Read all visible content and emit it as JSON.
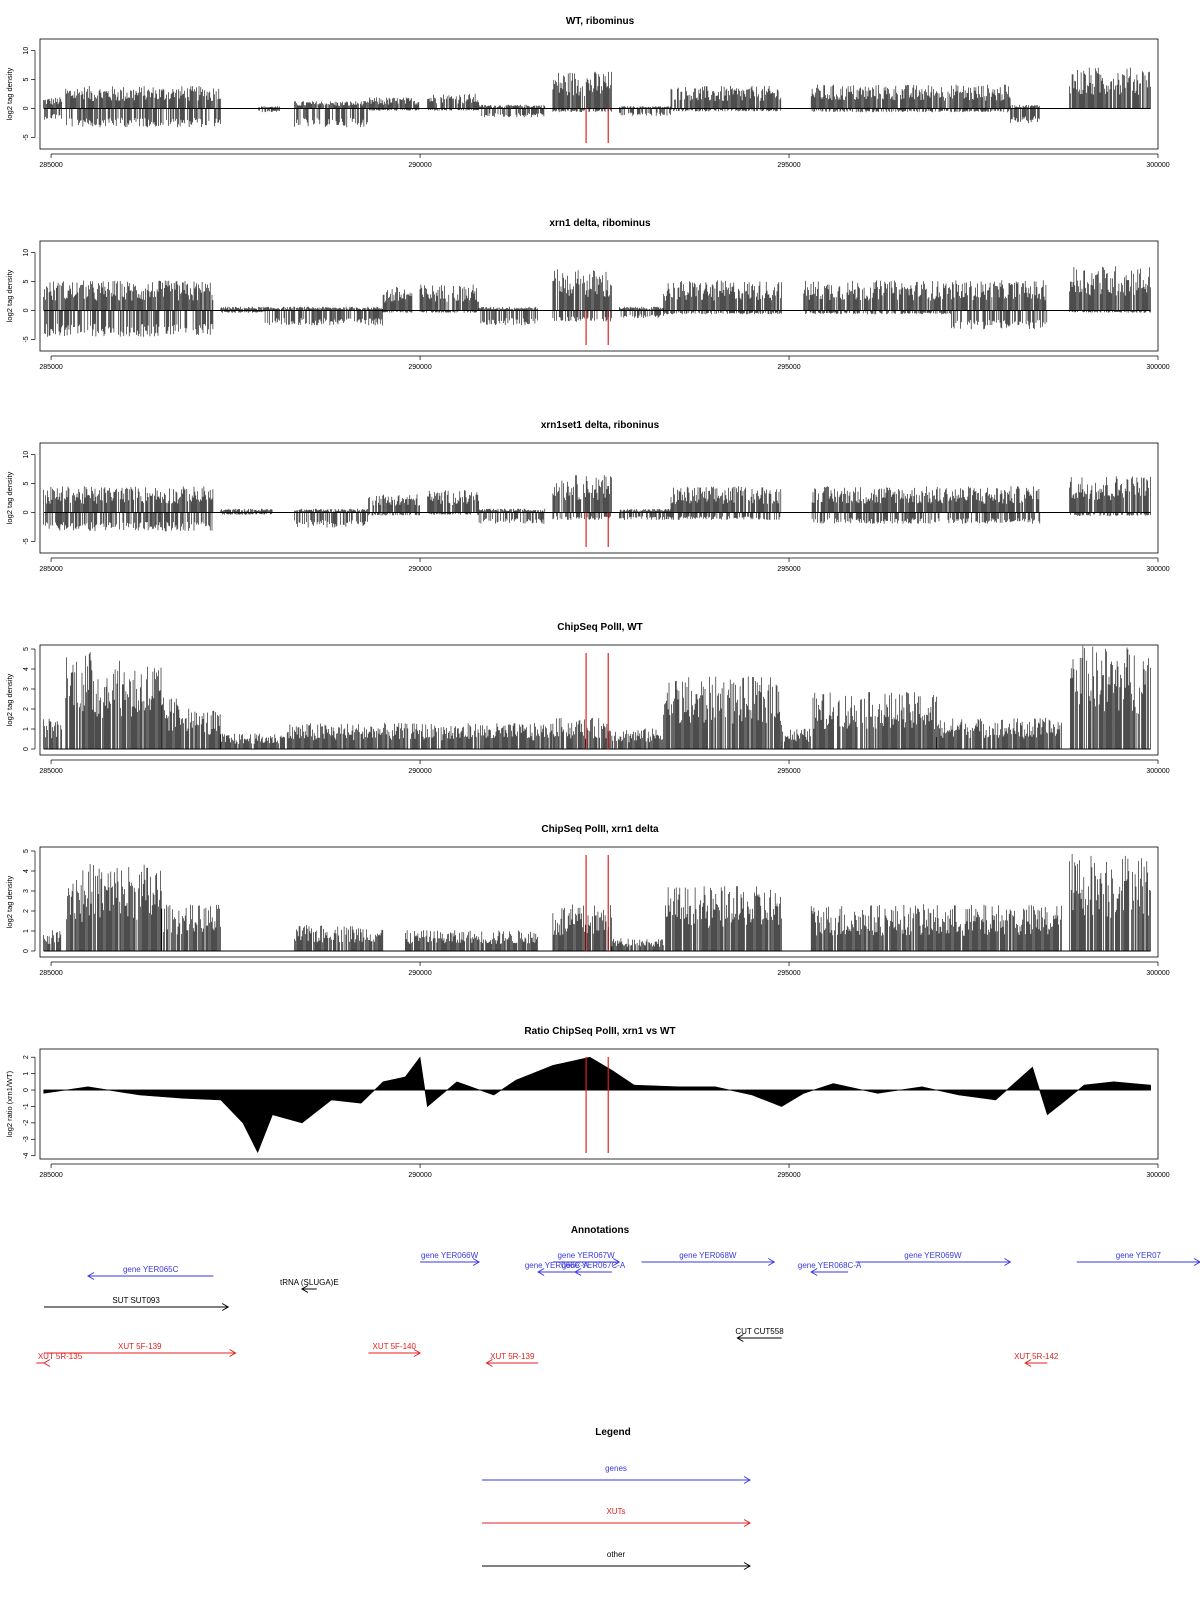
{
  "chart_data": [
    {
      "type": "bar",
      "title": "WT, ribominus",
      "ylabel": "log2 tag density",
      "xlabel": "",
      "ylim": [
        -7,
        12
      ],
      "yticks": [
        -5,
        0,
        5,
        10
      ],
      "xlim": [
        284850,
        300000
      ],
      "xticks": [
        285000,
        290000,
        295000,
        300000
      ],
      "red_lines_x": [
        292250,
        292550
      ],
      "segments": [
        {
          "x0": 284900,
          "x1": 285150,
          "pos": 1.5,
          "neg": 1.5
        },
        {
          "x0": 285200,
          "x1": 287300,
          "pos": 3.0,
          "neg": 2.5
        },
        {
          "x0": 287800,
          "x1": 288100,
          "pos": 0.3,
          "neg": 0.5
        },
        {
          "x0": 288300,
          "x1": 289300,
          "pos": 1.0,
          "neg": 2.5
        },
        {
          "x0": 289300,
          "x1": 290000,
          "pos": 1.5,
          "neg": 0.3
        },
        {
          "x0": 290100,
          "x1": 290800,
          "pos": 2.0,
          "neg": 0.3
        },
        {
          "x0": 290800,
          "x1": 291700,
          "pos": 0.5,
          "neg": 1.2
        },
        {
          "x0": 291800,
          "x1": 292600,
          "pos": 5.0,
          "neg": 0.5
        },
        {
          "x0": 292700,
          "x1": 293400,
          "pos": 0.3,
          "neg": 1.0
        },
        {
          "x0": 293400,
          "x1": 294900,
          "pos": 3.0,
          "neg": 0.4
        },
        {
          "x0": 295300,
          "x1": 298000,
          "pos": 3.2,
          "neg": 0.5
        },
        {
          "x0": 298000,
          "x1": 298400,
          "pos": 0.5,
          "neg": 2.0
        },
        {
          "x0": 298800,
          "x1": 299900,
          "pos": 5.5,
          "neg": 0.0
        }
      ]
    },
    {
      "type": "bar",
      "title": "xrn1 delta, ribominus",
      "ylabel": "log2 tag density",
      "xlabel": "",
      "ylim": [
        -7,
        12
      ],
      "yticks": [
        -5,
        0,
        5,
        10
      ],
      "xlim": [
        284850,
        300000
      ],
      "xticks": [
        285000,
        290000,
        295000,
        300000
      ],
      "red_lines_x": [
        292250,
        292550
      ],
      "segments": [
        {
          "x0": 284900,
          "x1": 287200,
          "pos": 4.0,
          "neg": 3.5
        },
        {
          "x0": 287300,
          "x1": 287900,
          "pos": 0.5,
          "neg": 0.3
        },
        {
          "x0": 287900,
          "x1": 289000,
          "pos": 0.5,
          "neg": 2.0
        },
        {
          "x0": 289000,
          "x1": 289500,
          "pos": 0.5,
          "neg": 2.0
        },
        {
          "x0": 289500,
          "x1": 289900,
          "pos": 3.2,
          "neg": 0.3
        },
        {
          "x0": 290000,
          "x1": 290800,
          "pos": 3.5,
          "neg": 0.3
        },
        {
          "x0": 290800,
          "x1": 291600,
          "pos": 0.5,
          "neg": 2.0
        },
        {
          "x0": 291800,
          "x1": 292600,
          "pos": 5.5,
          "neg": 1.5
        },
        {
          "x0": 292700,
          "x1": 293300,
          "pos": 0.5,
          "neg": 1.0
        },
        {
          "x0": 293300,
          "x1": 294900,
          "pos": 4.0,
          "neg": 0.5
        },
        {
          "x0": 295200,
          "x1": 297200,
          "pos": 4.0,
          "neg": 0.5
        },
        {
          "x0": 297200,
          "x1": 298500,
          "pos": 4.0,
          "neg": 2.5
        },
        {
          "x0": 298800,
          "x1": 299900,
          "pos": 6.0,
          "neg": 0.3
        }
      ]
    },
    {
      "type": "bar",
      "title": "xrn1set1 delta, riboninus",
      "ylabel": "log2 tag density",
      "xlabel": "",
      "ylim": [
        -7,
        12
      ],
      "yticks": [
        -5,
        0,
        5,
        10
      ],
      "xlim": [
        284850,
        300000
      ],
      "xticks": [
        285000,
        290000,
        295000,
        300000
      ],
      "red_lines_x": [
        292250,
        292550
      ],
      "segments": [
        {
          "x0": 284900,
          "x1": 287200,
          "pos": 3.5,
          "neg": 2.5
        },
        {
          "x0": 287300,
          "x1": 288000,
          "pos": 0.5,
          "neg": 0.3
        },
        {
          "x0": 288300,
          "x1": 289300,
          "pos": 0.5,
          "neg": 2.0
        },
        {
          "x0": 289300,
          "x1": 290000,
          "pos": 2.5,
          "neg": 0.4
        },
        {
          "x0": 290100,
          "x1": 290800,
          "pos": 3.0,
          "neg": 0.3
        },
        {
          "x0": 290800,
          "x1": 291700,
          "pos": 0.5,
          "neg": 1.5
        },
        {
          "x0": 291800,
          "x1": 292600,
          "pos": 5.0,
          "neg": 1.0
        },
        {
          "x0": 292700,
          "x1": 293400,
          "pos": 0.5,
          "neg": 1.0
        },
        {
          "x0": 293400,
          "x1": 294900,
          "pos": 3.5,
          "neg": 1.0
        },
        {
          "x0": 295300,
          "x1": 298400,
          "pos": 3.5,
          "neg": 1.5
        },
        {
          "x0": 298800,
          "x1": 299900,
          "pos": 5.0,
          "neg": 0.5
        }
      ]
    },
    {
      "type": "bar",
      "title": "ChipSeq PolII, WT",
      "ylabel": "log2 tag density",
      "xlabel": "",
      "ylim": [
        -0.3,
        5.2
      ],
      "yticks": [
        0,
        1,
        2,
        3,
        4,
        5
      ],
      "xlim": [
        284850,
        300000
      ],
      "xticks": [
        285000,
        290000,
        295000,
        300000
      ],
      "red_lines_x": [
        292250,
        292550
      ],
      "segments": [
        {
          "x0": 284900,
          "x1": 285150,
          "pos": 1.2,
          "neg": 0
        },
        {
          "x0": 285200,
          "x1": 285600,
          "pos": 3.8,
          "neg": 0
        },
        {
          "x0": 285600,
          "x1": 286500,
          "pos": 3.4,
          "neg": 0
        },
        {
          "x0": 286500,
          "x1": 286900,
          "pos": 2.0,
          "neg": 0
        },
        {
          "x0": 286900,
          "x1": 287300,
          "pos": 1.5,
          "neg": 0
        },
        {
          "x0": 287300,
          "x1": 288200,
          "pos": 0.6,
          "neg": 0
        },
        {
          "x0": 288200,
          "x1": 291800,
          "pos": 1.0,
          "neg": 0
        },
        {
          "x0": 291800,
          "x1": 292600,
          "pos": 1.2,
          "neg": 0
        },
        {
          "x0": 292600,
          "x1": 293300,
          "pos": 0.8,
          "neg": 0
        },
        {
          "x0": 293300,
          "x1": 294900,
          "pos": 2.8,
          "neg": 0
        },
        {
          "x0": 294900,
          "x1": 295300,
          "pos": 0.8,
          "neg": 0
        },
        {
          "x0": 295300,
          "x1": 297000,
          "pos": 2.2,
          "neg": 0
        },
        {
          "x0": 297000,
          "x1": 298700,
          "pos": 1.2,
          "neg": 0
        },
        {
          "x0": 298800,
          "x1": 299900,
          "pos": 4.0,
          "neg": 0
        }
      ]
    },
    {
      "type": "bar",
      "title": "ChipSeq PolII, xrn1 delta",
      "ylabel": "log2 tag density",
      "xlabel": "",
      "ylim": [
        -0.3,
        5.2
      ],
      "yticks": [
        0,
        1,
        2,
        3,
        4,
        5
      ],
      "xlim": [
        284850,
        300000
      ],
      "xticks": [
        285000,
        290000,
        295000,
        300000
      ],
      "red_lines_x": [
        292250,
        292550
      ],
      "segments": [
        {
          "x0": 284900,
          "x1": 285150,
          "pos": 0.8,
          "neg": 0
        },
        {
          "x0": 285200,
          "x1": 286500,
          "pos": 3.4,
          "neg": 0
        },
        {
          "x0": 286500,
          "x1": 287300,
          "pos": 1.8,
          "neg": 0
        },
        {
          "x0": 288300,
          "x1": 289500,
          "pos": 1.0,
          "neg": 0
        },
        {
          "x0": 289800,
          "x1": 291600,
          "pos": 0.8,
          "neg": 0
        },
        {
          "x0": 291800,
          "x1": 292600,
          "pos": 1.8,
          "neg": 0
        },
        {
          "x0": 292600,
          "x1": 293300,
          "pos": 0.5,
          "neg": 0
        },
        {
          "x0": 293300,
          "x1": 294900,
          "pos": 2.5,
          "neg": 0
        },
        {
          "x0": 295300,
          "x1": 298700,
          "pos": 1.8,
          "neg": 0
        },
        {
          "x0": 298800,
          "x1": 299900,
          "pos": 3.8,
          "neg": 0
        }
      ]
    },
    {
      "type": "area",
      "title": "Ratio ChipSeq PolII, xrn1 vs WT",
      "ylabel": "log2 ratio (xrn1/WT)",
      "xlabel": "",
      "ylim": [
        -4.2,
        2.5
      ],
      "yticks": [
        -4,
        -3,
        -2,
        -1,
        0,
        1,
        2
      ],
      "xlim": [
        284850,
        300000
      ],
      "xticks": [
        285000,
        290000,
        295000,
        300000
      ],
      "red_lines_x": [
        292250,
        292550
      ],
      "x": [
        284900,
        285500,
        286200,
        286800,
        287300,
        287600,
        287800,
        288000,
        288400,
        288800,
        289200,
        289500,
        289800,
        290000,
        290100,
        290500,
        291000,
        291300,
        291800,
        292100,
        292300,
        292600,
        292900,
        293500,
        294000,
        294500,
        294900,
        295200,
        295600,
        296200,
        296800,
        297300,
        297800,
        298300,
        298500,
        298700,
        299000,
        299400,
        299900
      ],
      "values": [
        -0.2,
        0.2,
        -0.3,
        -0.5,
        -0.6,
        -2.0,
        -3.8,
        -1.5,
        -2.0,
        -0.6,
        -0.8,
        0.5,
        0.8,
        2.0,
        -1.0,
        0.5,
        -0.3,
        0.6,
        1.5,
        1.8,
        2.0,
        1.2,
        0.3,
        0.2,
        0.2,
        -0.3,
        -1.0,
        -0.2,
        0.4,
        -0.2,
        0.2,
        -0.3,
        -0.6,
        1.4,
        -1.5,
        -0.8,
        0.3,
        0.5,
        0.3
      ]
    },
    {
      "type": "table",
      "title": "Annotations",
      "features": [
        {
          "label": "gene YER065C",
          "kind": "gene",
          "x0": 285500,
          "x1": 287200,
          "dir": "left",
          "lane": 2
        },
        {
          "label": "gene YER066W",
          "kind": "gene",
          "x0": 290000,
          "x1": 290800,
          "dir": "right",
          "lane": 0
        },
        {
          "label": "gene YER067W",
          "kind": "gene",
          "x0": 291800,
          "x1": 292700,
          "dir": "right",
          "lane": 0
        },
        {
          "label": "gene YER066C-A",
          "kind": "gene",
          "x0": 291600,
          "x1": 292100,
          "dir": "left",
          "lane": 1
        },
        {
          "label": "gene YER067C-A",
          "kind": "gene",
          "x0": 292100,
          "x1": 292600,
          "dir": "left",
          "lane": 1
        },
        {
          "label": "gene YER068W",
          "kind": "gene",
          "x0": 293000,
          "x1": 294800,
          "dir": "right",
          "lane": 0
        },
        {
          "label": "gene YER068C-A",
          "kind": "gene",
          "x0": 295300,
          "x1": 295800,
          "dir": "left",
          "lane": 1
        },
        {
          "label": "gene YER069W",
          "kind": "gene",
          "x0": 295900,
          "x1": 298000,
          "dir": "right",
          "lane": 0
        },
        {
          "label": "gene YER07",
          "kind": "gene",
          "x0": 298900,
          "x1": 300600,
          "dir": "right",
          "lane": 0
        },
        {
          "label": "SUT SUT093",
          "kind": "other",
          "x0": 284400,
          "x1": 287400,
          "dir": "right",
          "lane": 3
        },
        {
          "label": "tRNA (SLUGA)E",
          "kind": "other",
          "x0": 288400,
          "x1": 288600,
          "dir": "left",
          "lane": 4
        },
        {
          "label": "CUT CUT558",
          "kind": "other",
          "x0": 294300,
          "x1": 294900,
          "dir": "left",
          "lane": 5
        },
        {
          "label": "XUT 5F-139",
          "kind": "xut",
          "x0": 284400,
          "x1": 287500,
          "dir": "right",
          "lane": 6
        },
        {
          "label": "XUT 5R-135",
          "kind": "xut",
          "x0": 284400,
          "x1": 284800,
          "dir": "left",
          "lane": 7
        },
        {
          "label": "XUT 5F-140",
          "kind": "xut",
          "x0": 289300,
          "x1": 290000,
          "dir": "right",
          "lane": 6
        },
        {
          "label": "XUT 5R-139",
          "kind": "xut",
          "x0": 290900,
          "x1": 291600,
          "dir": "left",
          "lane": 7
        },
        {
          "label": "XUT 5R-142",
          "kind": "xut",
          "x0": 298200,
          "x1": 298500,
          "dir": "left",
          "lane": 7
        }
      ]
    },
    {
      "type": "table",
      "title": "Legend",
      "entries": [
        {
          "label": "genes",
          "color": "#3a3adf"
        },
        {
          "label": "XUTs",
          "color": "#e02020"
        },
        {
          "label": "other",
          "color": "#000000"
        }
      ]
    }
  ],
  "colors": {
    "gene": "#3a3adf",
    "xut": "#e02020",
    "other": "#000000",
    "marker": "#e02020",
    "bars": "#000000"
  }
}
